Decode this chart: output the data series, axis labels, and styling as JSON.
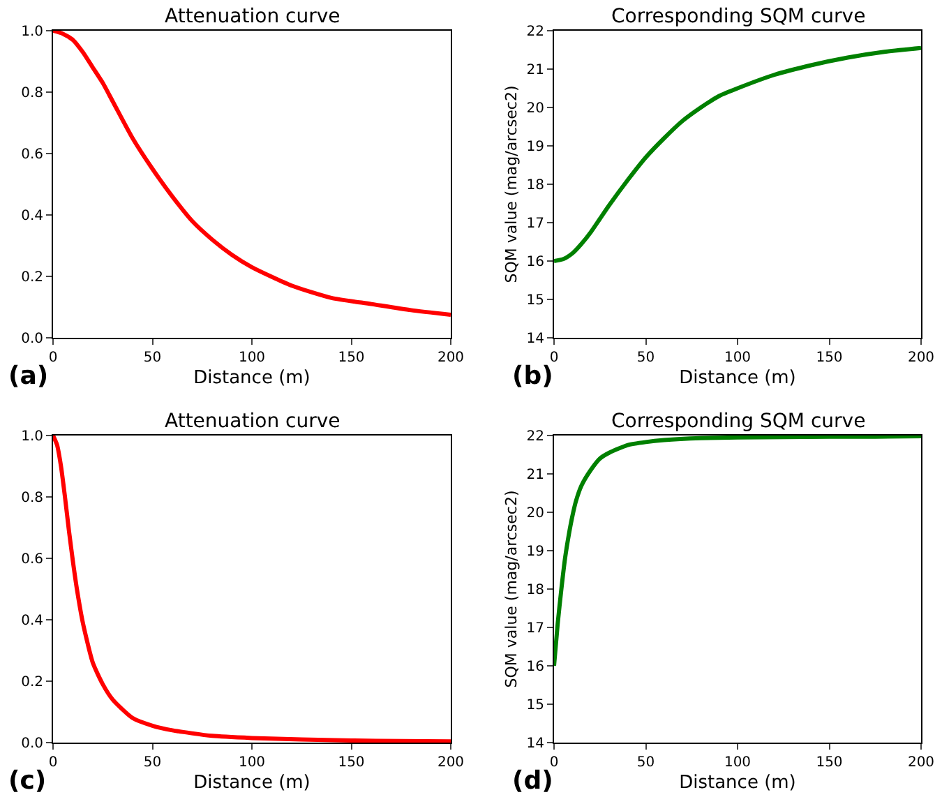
{
  "chart_data": [
    {
      "type": "line",
      "title": "Attenuation curve",
      "xlabel": "Distance (m)",
      "annotations": [
        "(a)"
      ],
      "x": [
        0,
        5,
        10,
        15,
        20,
        25,
        30,
        40,
        50,
        60,
        70,
        80,
        90,
        100,
        120,
        140,
        160,
        180,
        200
      ],
      "series": [
        {
          "color": "#ff0000",
          "values": [
            1,
            0.99,
            0.97,
            0.93,
            0.88,
            0.83,
            0.77,
            0.65,
            0.55,
            0.46,
            0.38,
            0.32,
            0.27,
            0.23,
            0.17,
            0.13,
            0.11,
            0.09,
            0.075
          ]
        }
      ],
      "xlim": [
        0,
        200
      ],
      "xticks": [
        0,
        50,
        100,
        150,
        200
      ],
      "ylim": [
        0,
        1
      ],
      "yticks": [
        {
          "value": 0,
          "label": "0.0"
        },
        {
          "value": 0.2,
          "label": "0.2"
        },
        {
          "value": 0.4,
          "label": "0.4"
        },
        {
          "value": 0.6,
          "label": "0.6"
        },
        {
          "value": 0.8,
          "label": "0.8"
        },
        {
          "value": 1,
          "label": "1.0"
        }
      ],
      "grid": false
    },
    {
      "type": "line",
      "title": "Corresponding SQM curve",
      "xlabel": "Distance (m)",
      "ylabel": "SQM value (mag/arcsec2)",
      "annotations": [
        "(b)"
      ],
      "x": [
        0,
        5,
        10,
        15,
        20,
        25,
        30,
        40,
        50,
        60,
        70,
        80,
        90,
        100,
        120,
        140,
        160,
        180,
        200
      ],
      "series": [
        {
          "color": "#008000",
          "values": [
            16,
            16.05,
            16.2,
            16.45,
            16.75,
            17.1,
            17.45,
            18.1,
            18.7,
            19.2,
            19.65,
            20,
            20.3,
            20.5,
            20.85,
            21.1,
            21.3,
            21.45,
            21.55
          ]
        }
      ],
      "xlim": [
        0,
        200
      ],
      "xticks": [
        0,
        50,
        100,
        150,
        200
      ],
      "ylim": [
        14,
        22
      ],
      "yticks": [
        14,
        15,
        16,
        17,
        18,
        19,
        20,
        21,
        22
      ],
      "grid": false
    },
    {
      "type": "line",
      "title": "Attenuation curve",
      "xlabel": "Distance (m)",
      "annotations": [
        "(c)"
      ],
      "x": [
        0,
        2,
        4,
        6,
        8,
        10,
        12,
        15,
        20,
        25,
        30,
        40,
        50,
        60,
        80,
        100,
        125,
        150,
        175,
        200
      ],
      "series": [
        {
          "color": "#ff0000",
          "values": [
            1,
            0.97,
            0.9,
            0.8,
            0.69,
            0.59,
            0.5,
            0.39,
            0.26,
            0.19,
            0.14,
            0.08,
            0.055,
            0.04,
            0.022,
            0.015,
            0.01,
            0.007,
            0.005,
            0.004
          ]
        }
      ],
      "xlim": [
        0,
        200
      ],
      "xticks": [
        0,
        50,
        100,
        150,
        200
      ],
      "ylim": [
        0,
        1
      ],
      "yticks": [
        {
          "value": 0,
          "label": "0.0"
        },
        {
          "value": 0.2,
          "label": "0.2"
        },
        {
          "value": 0.4,
          "label": "0.4"
        },
        {
          "value": 0.6,
          "label": "0.6"
        },
        {
          "value": 0.8,
          "label": "0.8"
        },
        {
          "value": 1,
          "label": "1.0"
        }
      ],
      "grid": false
    },
    {
      "type": "line",
      "title": "Corresponding SQM curve",
      "xlabel": "Distance (m)",
      "ylabel": "SQM value (mag/arcsec2)",
      "annotations": [
        "(d)"
      ],
      "x": [
        0,
        2,
        4,
        6,
        8,
        10,
        12,
        15,
        20,
        25,
        30,
        40,
        50,
        60,
        80,
        100,
        125,
        150,
        175,
        200
      ],
      "series": [
        {
          "color": "#008000",
          "values": [
            16,
            17.1,
            18,
            18.8,
            19.4,
            19.9,
            20.3,
            20.7,
            21.1,
            21.4,
            21.55,
            21.75,
            21.83,
            21.88,
            21.93,
            21.95,
            21.96,
            21.97,
            21.97,
            21.98
          ]
        }
      ],
      "xlim": [
        0,
        200
      ],
      "xticks": [
        0,
        50,
        100,
        150,
        200
      ],
      "ylim": [
        14,
        22
      ],
      "yticks": [
        14,
        15,
        16,
        17,
        18,
        19,
        20,
        21,
        22
      ],
      "grid": false
    }
  ]
}
